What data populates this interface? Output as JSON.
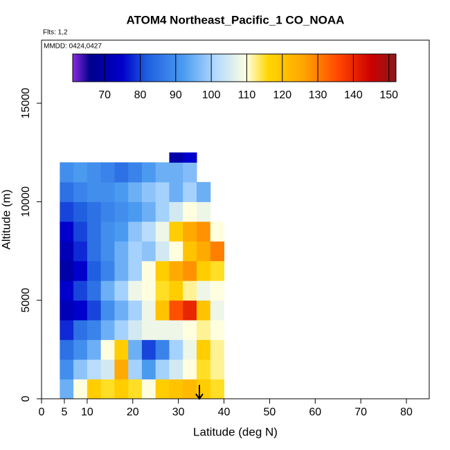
{
  "chart_data": {
    "type": "heatmap",
    "title": "ATOM4 Northeast_Pacific_1 CO_NOAA",
    "flights_label": "Flts: 1,2",
    "dates_label": "MMDD: 0424,0427",
    "x_label": "Latitude (deg N)",
    "y_label": "Altitude (m)",
    "xlim": [
      0,
      85
    ],
    "xticks": [
      0,
      5,
      10,
      20,
      30,
      40,
      50,
      60,
      70,
      80
    ],
    "ylim": [
      0,
      18200
    ],
    "yticks": [
      0,
      5000,
      10000,
      15000
    ],
    "x_edges": [
      4,
      7,
      10,
      13,
      16,
      19,
      22,
      25,
      28,
      31,
      34,
      37,
      40
    ],
    "y_edges": [
      0,
      1000,
      2000,
      3000,
      4000,
      5000,
      6000,
      7000,
      8000,
      9000,
      10000,
      11000,
      12000,
      12500
    ],
    "values": [
      [
        95,
        110,
        118,
        115,
        118,
        115,
        110,
        118,
        120,
        122,
        118,
        115
      ],
      [
        90,
        98,
        102,
        105,
        125,
        100,
        92,
        100,
        105,
        110,
        115,
        112
      ],
      [
        85,
        90,
        95,
        110,
        118,
        95,
        80,
        88,
        100,
        108,
        118,
        112
      ],
      [
        78,
        85,
        88,
        95,
        100,
        105,
        108,
        108,
        108,
        110,
        112,
        110
      ],
      [
        72,
        75,
        80,
        90,
        95,
        100,
        108,
        120,
        135,
        140,
        120,
        108
      ],
      [
        75,
        80,
        85,
        95,
        100,
        108,
        110,
        115,
        118,
        112,
        108,
        110
      ],
      [
        70,
        75,
        82,
        88,
        95,
        100,
        110,
        118,
        125,
        128,
        118,
        115
      ],
      [
        72,
        78,
        85,
        90,
        95,
        100,
        98,
        105,
        110,
        120,
        125,
        130
      ],
      [
        75,
        80,
        85,
        90,
        92,
        98,
        102,
        108,
        118,
        125,
        128,
        110
      ],
      [
        80,
        82,
        85,
        88,
        90,
        92,
        95,
        100,
        105,
        110,
        108,
        null
      ],
      [
        85,
        88,
        90,
        90,
        92,
        95,
        98,
        100,
        95,
        100,
        95,
        null
      ],
      [
        90,
        92,
        90,
        88,
        85,
        88,
        92,
        95,
        95,
        97,
        null,
        null
      ],
      [
        null,
        null,
        null,
        null,
        null,
        null,
        null,
        null,
        70,
        75,
        null,
        null
      ]
    ],
    "colorbar": {
      "lim": [
        61,
        152
      ],
      "ticks": [
        70,
        80,
        90,
        100,
        110,
        120,
        130,
        140,
        150
      ],
      "stops": [
        {
          "value": 61,
          "color": "#8a2be2"
        },
        {
          "value": 66,
          "color": "#00008b"
        },
        {
          "value": 75,
          "color": "#0000cd"
        },
        {
          "value": 82,
          "color": "#2060e0"
        },
        {
          "value": 92,
          "color": "#4a9af0"
        },
        {
          "value": 101,
          "color": "#b0d8ff"
        },
        {
          "value": 110,
          "color": "#ffffe0"
        },
        {
          "value": 116,
          "color": "#ffd700"
        },
        {
          "value": 126,
          "color": "#ffa500"
        },
        {
          "value": 136,
          "color": "#ff4500"
        },
        {
          "value": 145,
          "color": "#cc0000"
        },
        {
          "value": 152,
          "color": "#8b1a1a"
        }
      ]
    }
  }
}
